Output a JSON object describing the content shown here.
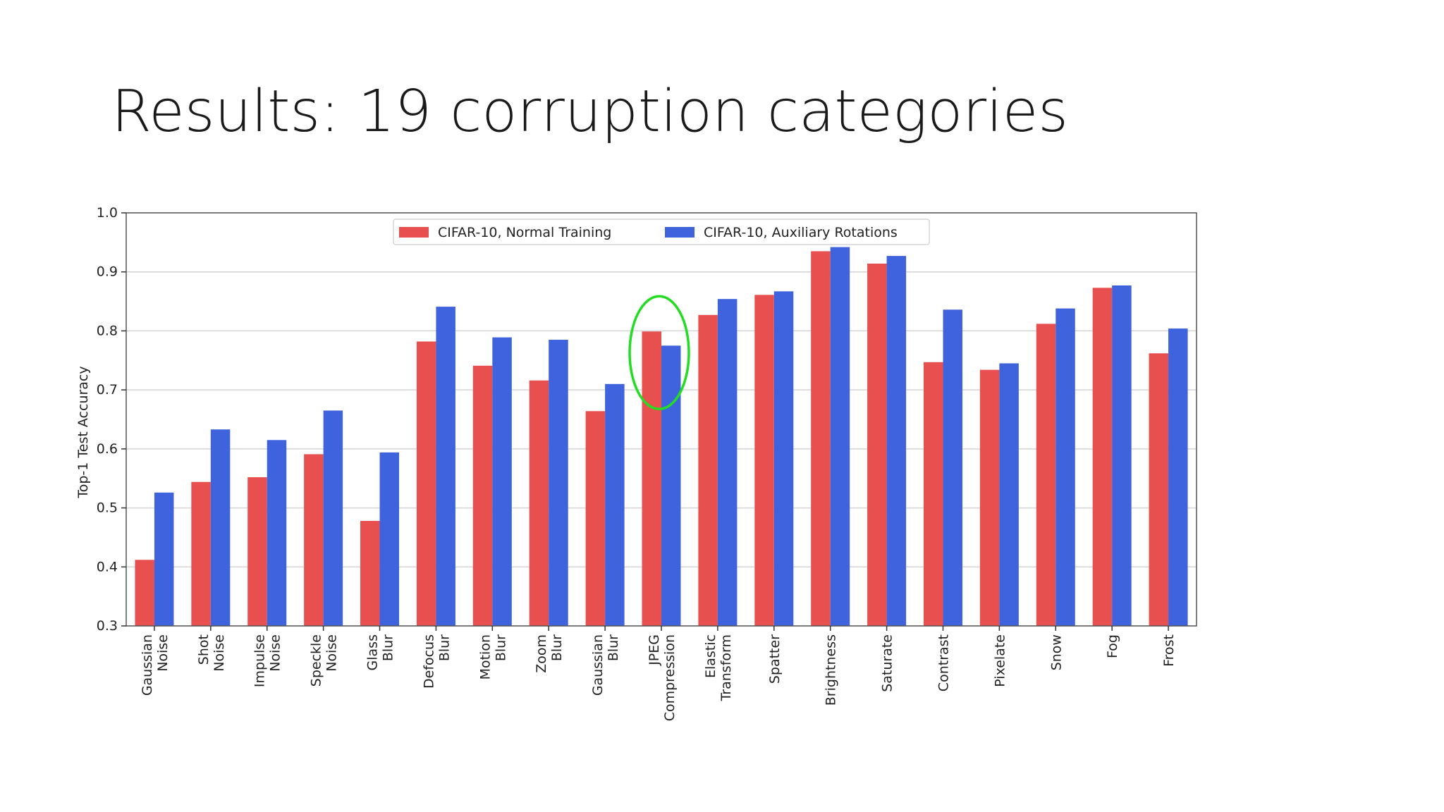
{
  "slide": {
    "title": "Results: 19 corruption categories"
  },
  "chart_data": {
    "type": "bar",
    "xlabel": "",
    "ylabel": "Top-1 Test Accuracy",
    "ylim": [
      0.3,
      1.0
    ],
    "yticks": [
      "0.3",
      "0.4",
      "0.5",
      "0.6",
      "0.7",
      "0.8",
      "0.9",
      "1.0"
    ],
    "grid": true,
    "legend_position": "top-center",
    "categories": [
      [
        "Gaussian",
        "Noise"
      ],
      [
        "Shot",
        "Noise"
      ],
      [
        "Impulse",
        "Noise"
      ],
      [
        "Speckle",
        "Noise"
      ],
      [
        "Glass",
        "Blur"
      ],
      [
        "Defocus",
        "Blur"
      ],
      [
        "Motion",
        "Blur"
      ],
      [
        "Zoom",
        "Blur"
      ],
      [
        "Gaussian",
        "Blur"
      ],
      [
        "JPEG",
        "Compression"
      ],
      [
        "Elastic",
        "Transform"
      ],
      [
        "Spatter"
      ],
      [
        "Brightness"
      ],
      [
        "Saturate"
      ],
      [
        "Contrast"
      ],
      [
        "Pixelate"
      ],
      [
        "Snow"
      ],
      [
        "Fog"
      ],
      [
        "Frost"
      ]
    ],
    "series": [
      {
        "name": "CIFAR-10, Normal Training",
        "color": "#e8504f",
        "values": [
          0.412,
          0.544,
          0.552,
          0.591,
          0.478,
          0.782,
          0.741,
          0.716,
          0.664,
          0.799,
          0.827,
          0.861,
          0.935,
          0.914,
          0.747,
          0.734,
          0.812,
          0.873,
          0.762
        ]
      },
      {
        "name": "CIFAR-10, Auxiliary Rotations",
        "color": "#3f63dd",
        "values": [
          0.526,
          0.633,
          0.615,
          0.665,
          0.594,
          0.841,
          0.789,
          0.785,
          0.71,
          0.775,
          0.854,
          0.867,
          0.942,
          0.927,
          0.836,
          0.745,
          0.838,
          0.877,
          0.804
        ]
      }
    ],
    "annotations": [
      {
        "type": "ellipse",
        "category_index": 9,
        "color": "#22dd22"
      }
    ]
  }
}
